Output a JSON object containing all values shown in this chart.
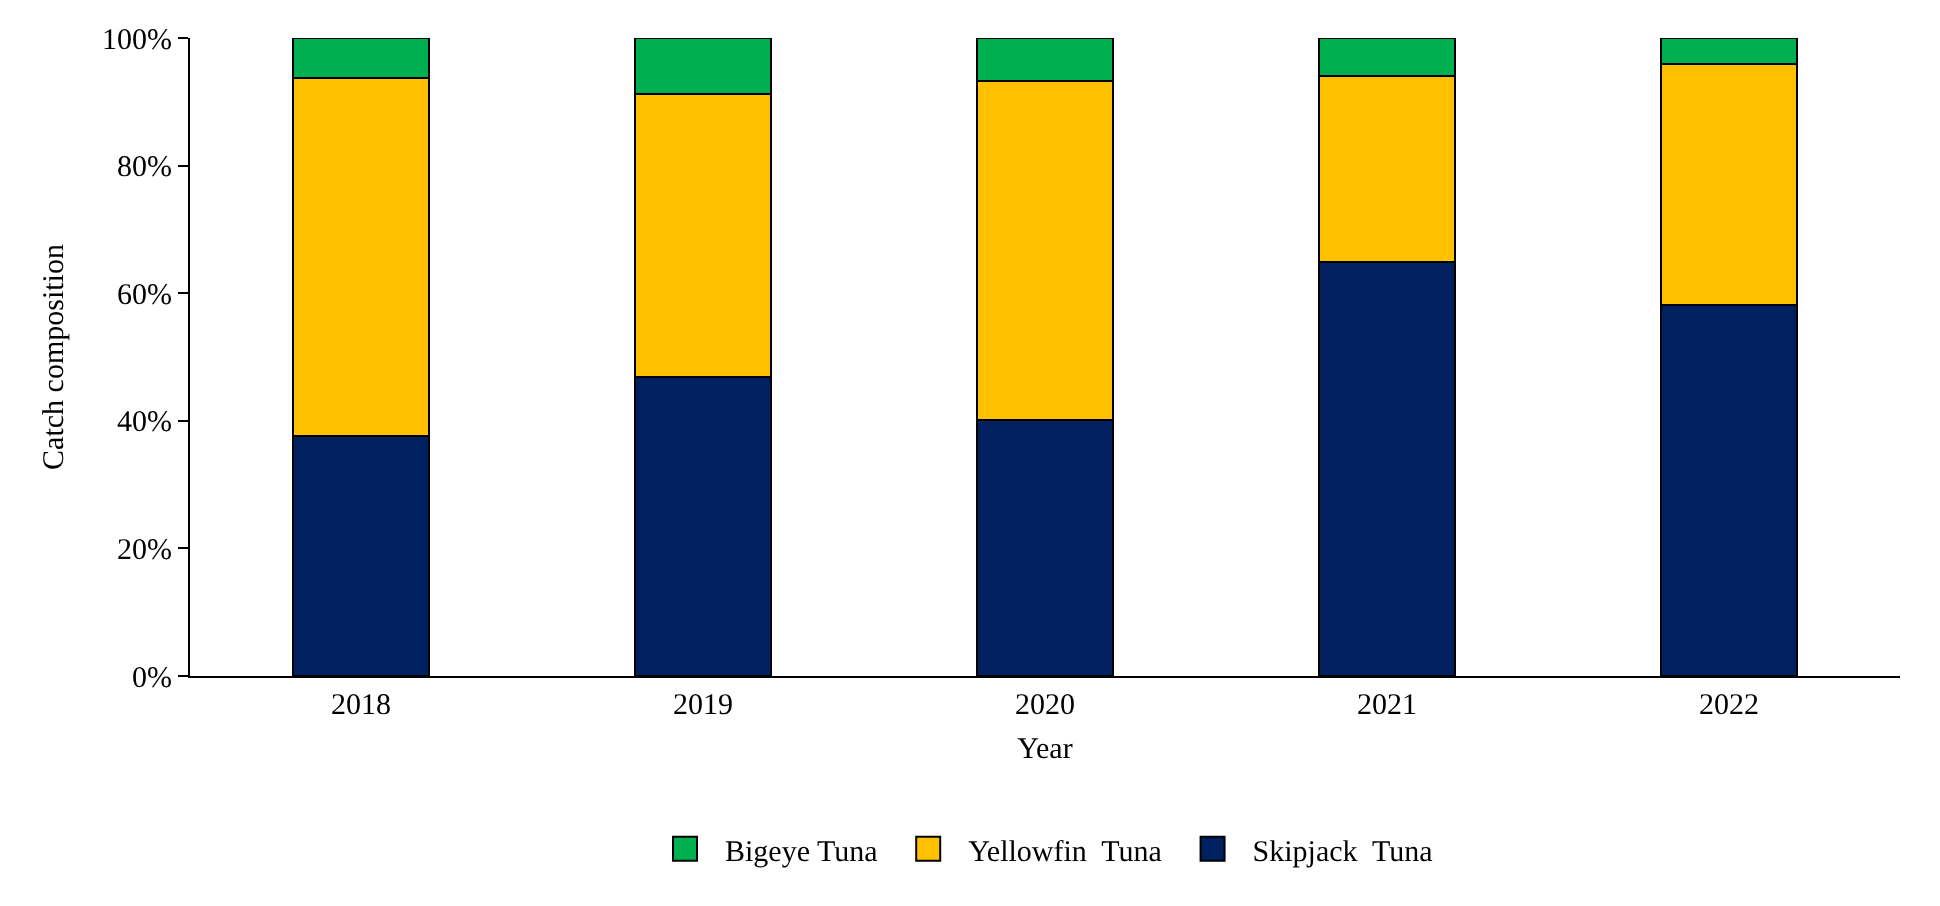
{
  "chart_data": {
    "type": "bar",
    "stacked": true,
    "xlabel": "Year",
    "ylabel": "Catch composition",
    "categories": [
      "2018",
      "2019",
      "2020",
      "2021",
      "2022"
    ],
    "series": [
      {
        "name": "Skipjack  Tuna",
        "color": "#002060",
        "values": [
          37.6,
          46.9,
          40.1,
          64.9,
          58.1
        ]
      },
      {
        "name": "Yellowfin  Tuna",
        "color": "#ffc000",
        "values": [
          56.2,
          44.4,
          53.1,
          29.2,
          37.9
        ]
      },
      {
        "name": "Bigeye Tuna",
        "color": "#00b050",
        "values": [
          6.2,
          8.7,
          6.8,
          5.9,
          4.0
        ]
      }
    ],
    "ylim": [
      0,
      100
    ],
    "yticks": [
      {
        "value": 0,
        "label": "0%"
      },
      {
        "value": 20,
        "label": "20%"
      },
      {
        "value": 40,
        "label": "40%"
      },
      {
        "value": 60,
        "label": "60%"
      },
      {
        "value": 80,
        "label": "80%"
      },
      {
        "value": 100,
        "label": "100%"
      }
    ],
    "grid": false,
    "legend": "bottom"
  }
}
